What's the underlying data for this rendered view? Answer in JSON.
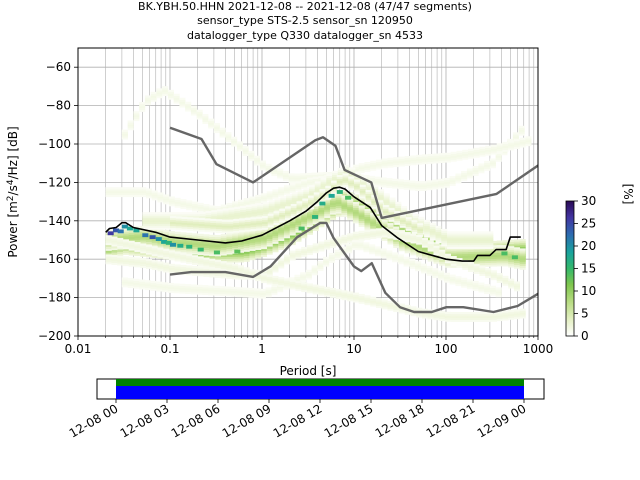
{
  "title_lines": [
    "BK.YBH.50.HHN   2021-12-08 -- 2021-12-08  (47/47 segments)",
    "sensor_type STS-2.5 sensor_sn 120950",
    "datalogger_type Q330 datalogger_sn 4533"
  ],
  "chart_data": {
    "type": "heatmap",
    "xlabel": "Period [s]",
    "xscale": "log",
    "xlim": [
      0.01,
      1000
    ],
    "ylim": [
      -200,
      -50
    ],
    "x_ticks": [
      {
        "v": 0.01,
        "label": "0.01"
      },
      {
        "v": 0.1,
        "label": "0.1"
      },
      {
        "v": 1,
        "label": "1"
      },
      {
        "v": 10,
        "label": "10"
      },
      {
        "v": 100,
        "label": "100"
      },
      {
        "v": 1000,
        "label": "1000"
      }
    ],
    "y_ticks": [
      {
        "v": -60,
        "label": "−60"
      },
      {
        "v": -80,
        "label": "−80"
      },
      {
        "v": -100,
        "label": "−100"
      },
      {
        "v": -120,
        "label": "−120"
      },
      {
        "v": -140,
        "label": "−140"
      },
      {
        "v": -160,
        "label": "−160"
      },
      {
        "v": -180,
        "label": "−180"
      },
      {
        "v": -200,
        "label": "−200"
      }
    ],
    "grid": true,
    "colorbar": {
      "label": "[%]",
      "range": [
        0,
        30
      ],
      "ticks": [
        {
          "v": 0,
          "label": "0"
        },
        {
          "v": 5,
          "label": "5"
        },
        {
          "v": 10,
          "label": "10"
        },
        {
          "v": 15,
          "label": "15"
        },
        {
          "v": 20,
          "label": "20"
        },
        {
          "v": 25,
          "label": "25"
        },
        {
          "v": 30,
          "label": "30"
        }
      ]
    },
    "noise_models": [
      {
        "name": "high",
        "color": "#666666",
        "points": [
          [
            0.1,
            -91.5
          ],
          [
            0.22,
            -97.4
          ],
          [
            0.32,
            -110.5
          ],
          [
            0.8,
            -120
          ],
          [
            3.8,
            -98
          ],
          [
            4.6,
            -96.5
          ],
          [
            6.3,
            -101
          ],
          [
            7.9,
            -113.5
          ],
          [
            15.4,
            -120
          ],
          [
            20,
            -138.5
          ],
          [
            354.8,
            -126
          ],
          [
            1000,
            -111.2
          ]
        ]
      },
      {
        "name": "low",
        "color": "#666666",
        "points": [
          [
            0.1,
            -168
          ],
          [
            0.17,
            -166.7
          ],
          [
            0.4,
            -166.7
          ],
          [
            0.8,
            -169.2
          ],
          [
            1.24,
            -163.7
          ],
          [
            2.4,
            -148.6
          ],
          [
            4.3,
            -141.1
          ],
          [
            5,
            -141.1
          ],
          [
            6,
            -149
          ],
          [
            10,
            -163.8
          ],
          [
            12,
            -166.2
          ],
          [
            15.6,
            -162.1
          ],
          [
            21.9,
            -177.5
          ],
          [
            31.6,
            -185
          ],
          [
            45,
            -187.5
          ],
          [
            70,
            -187.5
          ],
          [
            101,
            -185
          ],
          [
            154,
            -185
          ],
          [
            328,
            -187.5
          ],
          [
            600,
            -184.4
          ],
          [
            1000,
            -178
          ]
        ]
      },
      {
        "name": "mode",
        "color": "#000000",
        "points": [
          [
            0.02,
            -146
          ],
          [
            0.022,
            -144
          ],
          [
            0.026,
            -143.5
          ],
          [
            0.03,
            -141
          ],
          [
            0.033,
            -141
          ],
          [
            0.04,
            -143.5
          ],
          [
            0.07,
            -146
          ],
          [
            0.1,
            -148.5
          ],
          [
            0.2,
            -150
          ],
          [
            0.4,
            -151.5
          ],
          [
            0.6,
            -150.5
          ],
          [
            1,
            -147.5
          ],
          [
            2,
            -140
          ],
          [
            3,
            -135
          ],
          [
            4,
            -130
          ],
          [
            5,
            -125.5
          ],
          [
            6,
            -123
          ],
          [
            7,
            -122.5
          ],
          [
            8,
            -123.5
          ],
          [
            10,
            -127.5
          ],
          [
            15,
            -133
          ],
          [
            20,
            -142.5
          ],
          [
            30,
            -149
          ],
          [
            50,
            -156
          ],
          [
            100,
            -160
          ],
          [
            150,
            -161
          ],
          [
            200,
            -161
          ],
          [
            220,
            -158
          ],
          [
            300,
            -158
          ],
          [
            350,
            -155
          ],
          [
            450,
            -155
          ],
          [
            500,
            -148.5
          ],
          [
            650,
            -148.5
          ]
        ]
      }
    ],
    "density_bands": [
      {
        "path": [
          [
            0.02,
            -153
          ],
          [
            0.03,
            -151
          ],
          [
            0.07,
            -153
          ],
          [
            0.2,
            -155.5
          ],
          [
            0.6,
            -155
          ],
          [
            1,
            -152
          ],
          [
            2,
            -146
          ],
          [
            3,
            -141
          ],
          [
            5,
            -134
          ],
          [
            7,
            -130
          ],
          [
            10,
            -133
          ],
          [
            20,
            -143
          ],
          [
            50,
            -151
          ],
          [
            100,
            -155
          ],
          [
            300,
            -157
          ],
          [
            650,
            -156
          ]
        ],
        "level": 12,
        "width": 6
      },
      {
        "path": [
          [
            0.02,
            -150
          ],
          [
            0.05,
            -148
          ],
          [
            0.1,
            -151
          ],
          [
            0.3,
            -153
          ],
          [
            1,
            -149
          ],
          [
            2,
            -142
          ],
          [
            4,
            -135
          ],
          [
            6,
            -130
          ],
          [
            10,
            -136
          ],
          [
            30,
            -150
          ],
          [
            100,
            -159
          ],
          [
            400,
            -158
          ],
          [
            650,
            -160
          ]
        ],
        "level": 8,
        "width": 5
      },
      {
        "path": [
          [
            0.03,
            -95
          ],
          [
            0.05,
            -78
          ],
          [
            0.08,
            -72
          ],
          [
            0.1,
            -75
          ],
          [
            0.2,
            -85
          ],
          [
            0.5,
            -100
          ],
          [
            1,
            -112
          ],
          [
            2,
            -118
          ],
          [
            5,
            -117
          ],
          [
            10,
            -118
          ],
          [
            20,
            -120
          ],
          [
            50,
            -122
          ],
          [
            100,
            -120
          ],
          [
            300,
            -110
          ],
          [
            700,
            -90
          ]
        ],
        "level": 1.5,
        "width": 3
      },
      {
        "path": [
          [
            0.02,
            -125
          ],
          [
            0.05,
            -125
          ],
          [
            0.1,
            -130
          ],
          [
            0.3,
            -135
          ],
          [
            1,
            -128
          ],
          [
            3,
            -120
          ],
          [
            6,
            -118
          ],
          [
            10,
            -113
          ],
          [
            20,
            -110
          ],
          [
            50,
            -108
          ],
          [
            100,
            -107
          ],
          [
            300,
            -103
          ],
          [
            800,
            -98
          ]
        ],
        "level": 1.5,
        "width": 3
      },
      {
        "path": [
          [
            0.02,
            -160
          ],
          [
            0.05,
            -162
          ],
          [
            0.1,
            -165
          ],
          [
            0.5,
            -168
          ],
          [
            1,
            -168
          ],
          [
            2,
            -158
          ],
          [
            5,
            -152
          ],
          [
            10,
            -148
          ],
          [
            20,
            -146
          ],
          [
            50,
            -150
          ],
          [
            100,
            -160
          ],
          [
            300,
            -168
          ],
          [
            600,
            -175
          ]
        ],
        "level": 2,
        "width": 3
      },
      {
        "path": [
          [
            0.03,
            -172
          ],
          [
            0.1,
            -175
          ],
          [
            0.5,
            -177
          ],
          [
            1,
            -178
          ],
          [
            3,
            -168
          ],
          [
            5,
            -160
          ],
          [
            10,
            -152
          ],
          [
            30,
            -160
          ],
          [
            100,
            -170
          ],
          [
            400,
            -178
          ]
        ],
        "level": 1.5,
        "width": 3
      },
      {
        "path": [
          [
            0.02,
            -150
          ],
          [
            0.1,
            -158
          ],
          [
            0.5,
            -165
          ],
          [
            1,
            -170
          ],
          [
            3,
            -175
          ],
          [
            10,
            -180
          ],
          [
            50,
            -188
          ],
          [
            100,
            -190
          ],
          [
            300,
            -190
          ],
          [
            700,
            -188
          ]
        ],
        "level": 2,
        "width": 3
      },
      {
        "path": [
          [
            0.05,
            -140
          ],
          [
            0.2,
            -140
          ],
          [
            1,
            -135
          ],
          [
            3,
            -127
          ],
          [
            5,
            -120
          ],
          [
            8,
            -115
          ],
          [
            15,
            -125
          ],
          [
            40,
            -140
          ],
          [
            100,
            -150
          ],
          [
            300,
            -150
          ]
        ],
        "level": 3,
        "width": 4
      },
      {
        "path": [
          [
            0.1,
            -141
          ],
          [
            0.4,
            -143
          ],
          [
            1,
            -141
          ],
          [
            2,
            -135
          ],
          [
            3,
            -131
          ],
          [
            5,
            -125
          ],
          [
            7,
            -118
          ],
          [
            10,
            -122
          ],
          [
            20,
            -135
          ],
          [
            50,
            -145
          ]
        ],
        "level": 4,
        "width": 3
      }
    ],
    "highlight_cells": [
      {
        "x": 0.021,
        "y": -146.5,
        "level": 26
      },
      {
        "x": 0.024,
        "y": -145,
        "level": 24
      },
      {
        "x": 0.027,
        "y": -145.5,
        "level": 22
      },
      {
        "x": 0.03,
        "y": -143,
        "level": 20
      },
      {
        "x": 0.034,
        "y": -144,
        "level": 18
      },
      {
        "x": 0.04,
        "y": -145,
        "level": 18
      },
      {
        "x": 0.05,
        "y": -147.5,
        "level": 22
      },
      {
        "x": 0.06,
        "y": -148.5,
        "level": 24
      },
      {
        "x": 0.07,
        "y": -149.5,
        "level": 20
      },
      {
        "x": 0.08,
        "y": -151,
        "level": 18
      },
      {
        "x": 0.09,
        "y": -151.5,
        "level": 16
      },
      {
        "x": 0.1,
        "y": -152.5,
        "level": 20
      },
      {
        "x": 0.12,
        "y": -153,
        "level": 17
      },
      {
        "x": 0.15,
        "y": -153.5,
        "level": 16
      },
      {
        "x": 0.2,
        "y": -155,
        "level": 15
      },
      {
        "x": 0.3,
        "y": -156.5,
        "level": 14
      },
      {
        "x": 0.5,
        "y": -156,
        "level": 13
      },
      {
        "x": 2.5,
        "y": -144,
        "level": 14
      },
      {
        "x": 3.5,
        "y": -138,
        "level": 16
      },
      {
        "x": 4.2,
        "y": -131,
        "level": 17
      },
      {
        "x": 5.3,
        "y": -127,
        "level": 18
      },
      {
        "x": 6.5,
        "y": -125,
        "level": 16
      },
      {
        "x": 8,
        "y": -128,
        "level": 14
      },
      {
        "x": 400,
        "y": -157,
        "level": 14
      },
      {
        "x": 520,
        "y": -159,
        "level": 14
      }
    ]
  },
  "timeline": {
    "tick_labels": [
      "12-08 00",
      "12-08 03",
      "12-08 06",
      "12-08 09",
      "12-08 12",
      "12-08 15",
      "12-08 18",
      "12-08 21",
      "12-09 00"
    ],
    "segment_colors": [
      "#008000",
      "#0000ff"
    ]
  }
}
